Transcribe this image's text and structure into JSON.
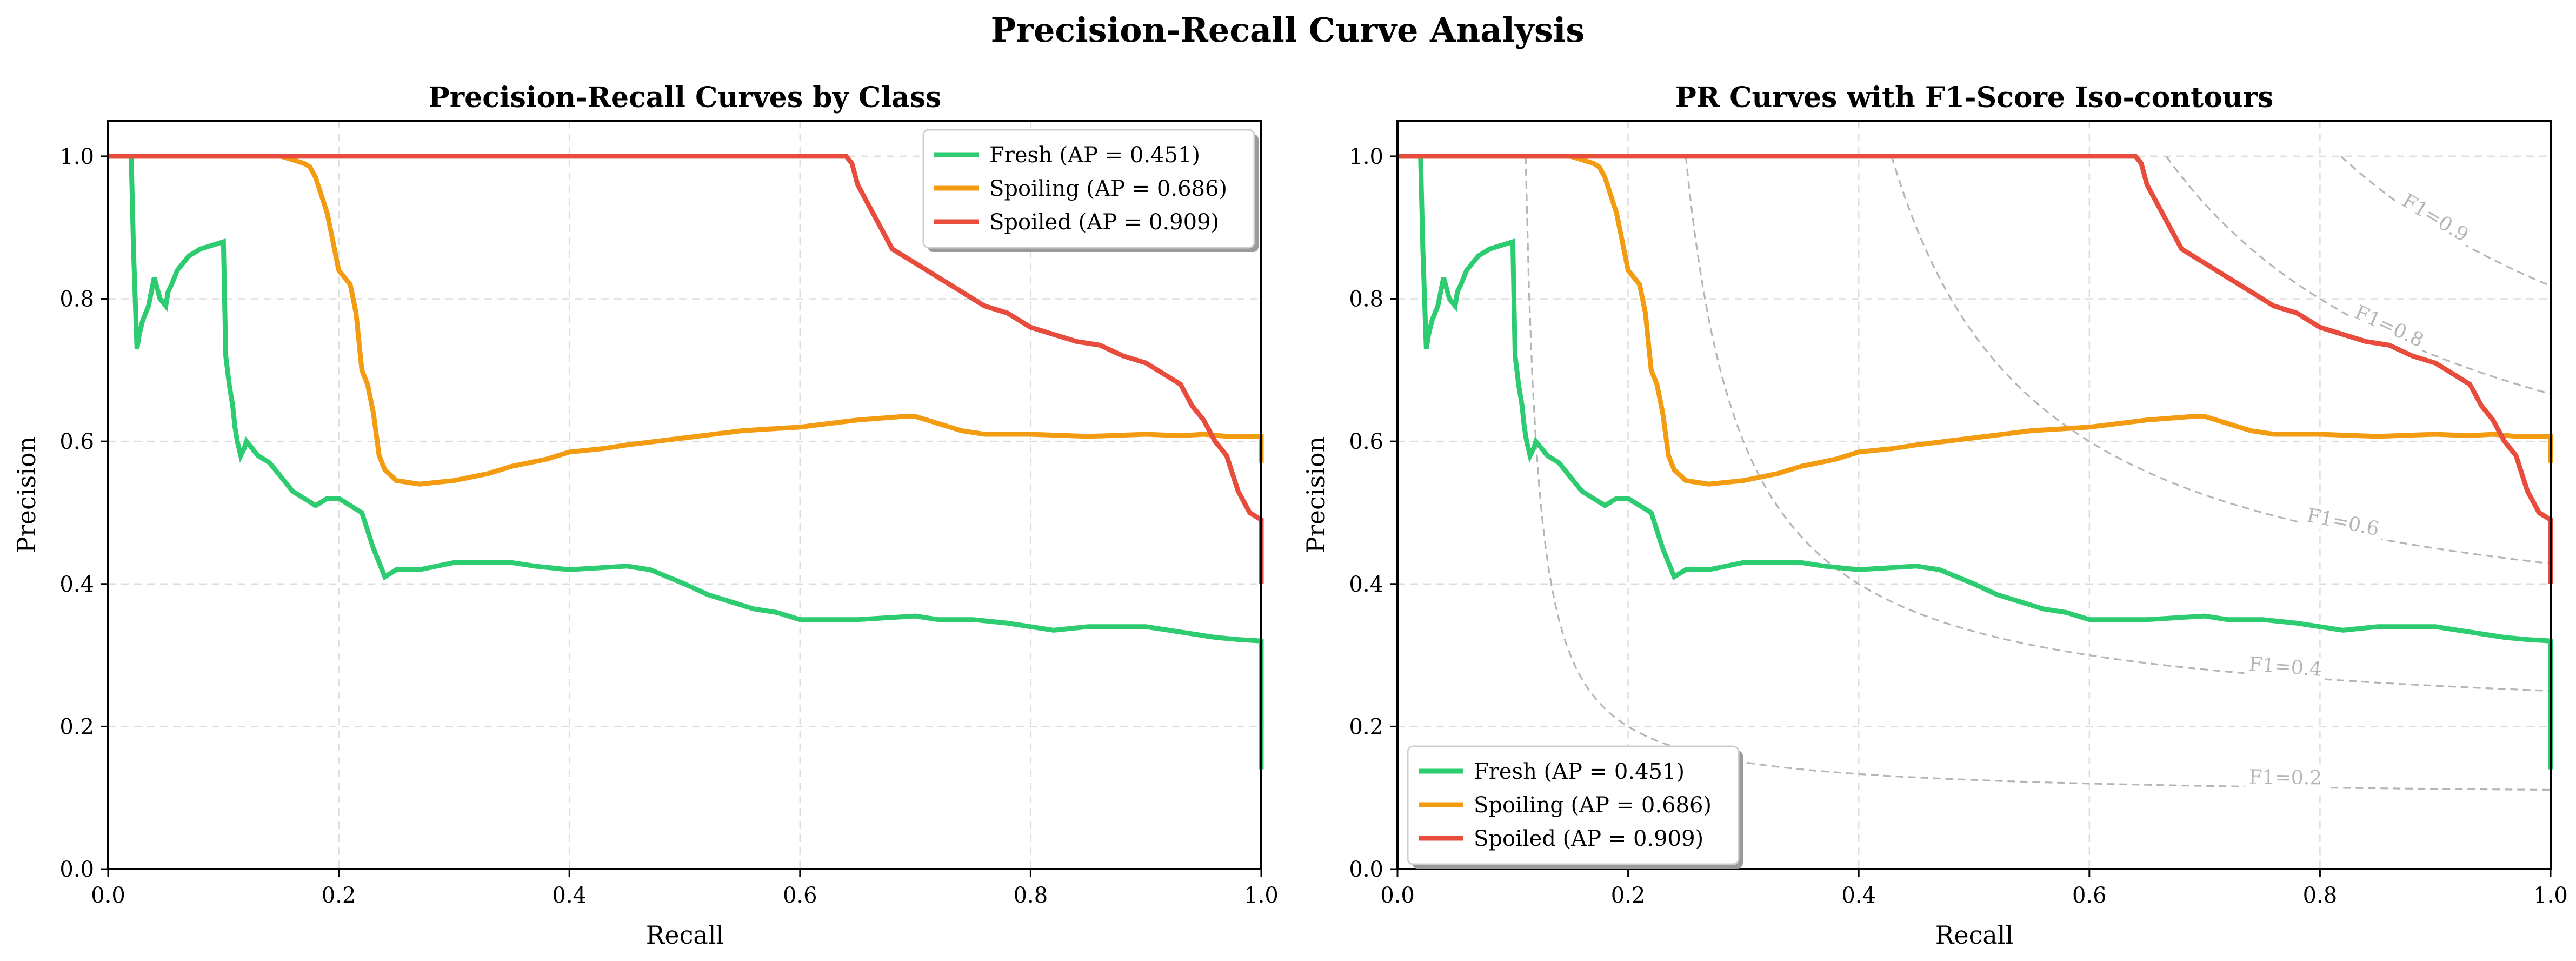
{
  "figure": {
    "title": "Precision-Recall Curve Analysis"
  },
  "colors": {
    "fresh": "#2ecc71",
    "spoiling": "#f39c12",
    "spoiled": "#e74c3c",
    "iso": "#b5b5b5",
    "grid": "#dddddd"
  },
  "chart_data": [
    {
      "type": "line",
      "title": "Precision-Recall Curves by Class",
      "xlabel": "Recall",
      "ylabel": "Precision",
      "xlim": [
        0,
        1.0
      ],
      "ylim": [
        0,
        1.05
      ],
      "xticks": [
        "0.0",
        "0.2",
        "0.4",
        "0.6",
        "0.8",
        "1.0"
      ],
      "yticks": [
        "0.0",
        "0.2",
        "0.4",
        "0.6",
        "0.8",
        "1.0"
      ],
      "grid": true,
      "legend_position": "top-right",
      "series": [
        {
          "name": "Fresh (AP = 0.451)",
          "color": "#2ecc71",
          "x": [
            0.0,
            0.02,
            0.022,
            0.025,
            0.027,
            0.03,
            0.035,
            0.04,
            0.045,
            0.05,
            0.052,
            0.055,
            0.06,
            0.065,
            0.07,
            0.08,
            0.09,
            0.1,
            0.102,
            0.105,
            0.108,
            0.11,
            0.112,
            0.115,
            0.118,
            0.12,
            0.125,
            0.13,
            0.14,
            0.15,
            0.16,
            0.17,
            0.18,
            0.19,
            0.2,
            0.21,
            0.22,
            0.23,
            0.24,
            0.25,
            0.27,
            0.3,
            0.32,
            0.35,
            0.37,
            0.4,
            0.45,
            0.47,
            0.5,
            0.52,
            0.54,
            0.56,
            0.58,
            0.6,
            0.65,
            0.7,
            0.72,
            0.75,
            0.78,
            0.8,
            0.82,
            0.85,
            0.88,
            0.9,
            0.92,
            0.94,
            0.96,
            0.98,
            1.0,
            1.0
          ],
          "y": [
            1.0,
            1.0,
            0.87,
            0.73,
            0.75,
            0.77,
            0.79,
            0.83,
            0.8,
            0.79,
            0.81,
            0.82,
            0.84,
            0.85,
            0.86,
            0.87,
            0.875,
            0.88,
            0.72,
            0.68,
            0.65,
            0.62,
            0.6,
            0.58,
            0.59,
            0.6,
            0.59,
            0.58,
            0.57,
            0.55,
            0.53,
            0.52,
            0.51,
            0.52,
            0.52,
            0.51,
            0.5,
            0.45,
            0.41,
            0.42,
            0.42,
            0.43,
            0.43,
            0.43,
            0.425,
            0.42,
            0.425,
            0.42,
            0.4,
            0.385,
            0.375,
            0.365,
            0.36,
            0.35,
            0.35,
            0.355,
            0.35,
            0.35,
            0.345,
            0.34,
            0.335,
            0.34,
            0.34,
            0.34,
            0.335,
            0.33,
            0.325,
            0.322,
            0.32,
            0.14
          ]
        },
        {
          "name": "Spoiling (AP = 0.686)",
          "color": "#f39c12",
          "x": [
            0.0,
            0.15,
            0.16,
            0.17,
            0.175,
            0.18,
            0.19,
            0.2,
            0.21,
            0.215,
            0.22,
            0.225,
            0.23,
            0.235,
            0.24,
            0.25,
            0.27,
            0.3,
            0.33,
            0.35,
            0.38,
            0.4,
            0.43,
            0.45,
            0.5,
            0.55,
            0.6,
            0.65,
            0.69,
            0.7,
            0.72,
            0.74,
            0.76,
            0.8,
            0.85,
            0.9,
            0.93,
            0.95,
            0.97,
            0.99,
            1.0,
            1.0
          ],
          "y": [
            1.0,
            1.0,
            0.995,
            0.99,
            0.985,
            0.97,
            0.92,
            0.84,
            0.82,
            0.78,
            0.7,
            0.68,
            0.64,
            0.58,
            0.56,
            0.545,
            0.54,
            0.545,
            0.555,
            0.565,
            0.575,
            0.585,
            0.59,
            0.595,
            0.605,
            0.615,
            0.62,
            0.63,
            0.635,
            0.635,
            0.625,
            0.615,
            0.61,
            0.61,
            0.607,
            0.61,
            0.608,
            0.61,
            0.607,
            0.607,
            0.607,
            0.57
          ]
        },
        {
          "name": "Spoiled (AP = 0.909)",
          "color": "#e74c3c",
          "x": [
            0.0,
            0.64,
            0.645,
            0.65,
            0.66,
            0.67,
            0.68,
            0.7,
            0.72,
            0.74,
            0.76,
            0.78,
            0.8,
            0.82,
            0.84,
            0.86,
            0.88,
            0.9,
            0.91,
            0.92,
            0.93,
            0.94,
            0.95,
            0.96,
            0.97,
            0.98,
            0.99,
            1.0,
            1.0
          ],
          "y": [
            1.0,
            1.0,
            0.99,
            0.96,
            0.93,
            0.9,
            0.87,
            0.85,
            0.83,
            0.81,
            0.79,
            0.78,
            0.76,
            0.75,
            0.74,
            0.735,
            0.72,
            0.71,
            0.7,
            0.69,
            0.68,
            0.65,
            0.63,
            0.6,
            0.58,
            0.53,
            0.5,
            0.49,
            0.4
          ]
        }
      ]
    },
    {
      "type": "line",
      "title": "PR Curves with F1-Score Iso-contours",
      "xlabel": "Recall",
      "ylabel": "Precision",
      "xlim": [
        0,
        1.0
      ],
      "ylim": [
        0,
        1.05
      ],
      "xticks": [
        "0.0",
        "0.2",
        "0.4",
        "0.6",
        "0.8",
        "1.0"
      ],
      "yticks": [
        "0.0",
        "0.2",
        "0.4",
        "0.6",
        "0.8",
        "1.0"
      ],
      "grid": true,
      "legend_position": "bottom-left",
      "series_same_as_chart": 0,
      "iso_f1": [
        {
          "f1": 0.2,
          "label": "F1=0.2",
          "label_recall": 0.77
        },
        {
          "f1": 0.4,
          "label": "F1=0.4",
          "label_recall": 0.77
        },
        {
          "f1": 0.6,
          "label": "F1=0.6",
          "label_recall": 0.82
        },
        {
          "f1": 0.8,
          "label": "F1=0.8",
          "label_recall": 0.86
        },
        {
          "f1": 0.9,
          "label": "F1=0.9",
          "label_recall": 0.9
        }
      ]
    }
  ]
}
